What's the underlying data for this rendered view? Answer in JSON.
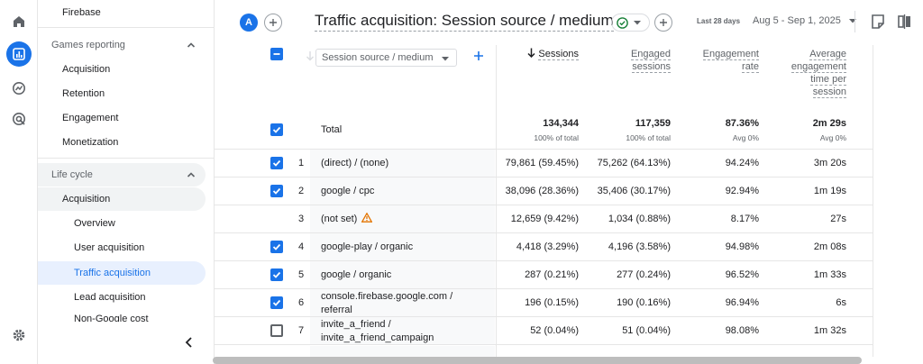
{
  "sidebar": {
    "top_item": "Firebase",
    "section_games": "Games reporting",
    "games_items": [
      "Acquisition",
      "Retention",
      "Engagement",
      "Monetization"
    ],
    "section_lifecycle": "Life cycle",
    "lifecycle_acquisition": "Acquisition",
    "acquisition_children": [
      "Overview",
      "User acquisition",
      "Traffic acquisition",
      "Lead acquisition",
      "Non-Google cost"
    ]
  },
  "toolbar": {
    "avatar_letter": "A",
    "title": "Traffic acquisition: Session source / medium",
    "date_label": "Last 28 days",
    "date_range": "Aug 5 - Sep 1, 2025"
  },
  "table": {
    "dimension_select": "Session source / medium",
    "headers": {
      "sessions": "Sessions",
      "engaged_sessions": [
        "Engaged",
        "sessions"
      ],
      "engagement_rate": [
        "Engagement",
        "rate"
      ],
      "avg_engagement": [
        "Average",
        "engagement",
        "time per",
        "session"
      ]
    },
    "total": {
      "label": "Total",
      "sessions": "134,344",
      "sessions_sub": "100% of total",
      "engaged": "117,359",
      "engaged_sub": "100% of total",
      "rate": "87.36%",
      "rate_sub": "Avg 0%",
      "time": "2m 29s",
      "time_sub": "Avg 0%"
    },
    "rows": [
      {
        "n": "1",
        "dim": [
          "(direct) / (none)"
        ],
        "sessions": "79,861 (59.45%)",
        "engaged": "75,262 (64.13%)",
        "rate": "94.24%",
        "time": "3m 20s",
        "checked": true
      },
      {
        "n": "2",
        "dim": [
          "google / cpc"
        ],
        "sessions": "38,096 (28.36%)",
        "engaged": "35,406 (30.17%)",
        "rate": "92.94%",
        "time": "1m 19s",
        "checked": true
      },
      {
        "n": "3",
        "dim": [
          "(not set)"
        ],
        "sessions": "12,659 (9.42%)",
        "engaged": "1,034 (0.88%)",
        "rate": "8.17%",
        "time": "27s",
        "checked": null
      },
      {
        "n": "4",
        "dim": [
          "google-play / organic"
        ],
        "sessions": "4,418 (3.29%)",
        "engaged": "4,196 (3.58%)",
        "rate": "94.98%",
        "time": "2m 08s",
        "checked": true
      },
      {
        "n": "5",
        "dim": [
          "google / organic"
        ],
        "sessions": "287 (0.21%)",
        "engaged": "277 (0.24%)",
        "rate": "96.52%",
        "time": "1m 33s",
        "checked": true
      },
      {
        "n": "6",
        "dim": [
          "console.firebase.google.com /",
          "referral"
        ],
        "sessions": "196 (0.15%)",
        "engaged": "190 (0.16%)",
        "rate": "96.94%",
        "time": "6s",
        "checked": true
      },
      {
        "n": "7",
        "dim": [
          "invite_a_friend /",
          "invite_a_friend_campaign"
        ],
        "sessions": "52 (0.04%)",
        "engaged": "51 (0.04%)",
        "rate": "98.08%",
        "time": "1m 32s",
        "checked": false
      }
    ]
  }
}
